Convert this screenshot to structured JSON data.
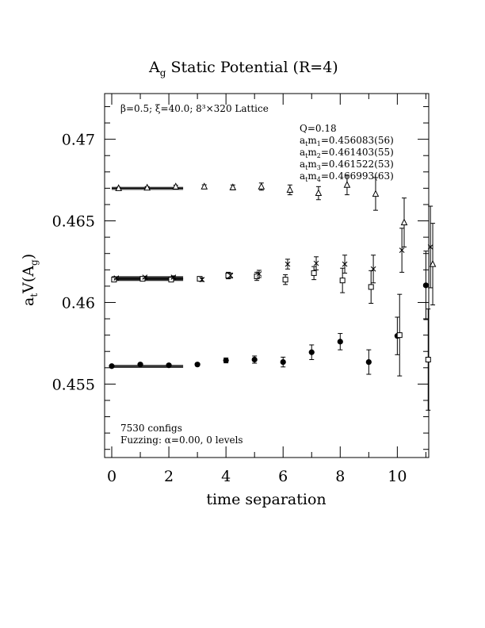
{
  "chart_data": {
    "type": "scatter",
    "title": "A",
    "title_sub": "g",
    "title_rest": " Static Potential (R=4)",
    "ylabel_main": "a",
    "ylabel_sub": "t",
    "ylabel_rest": "V(A",
    "ylabel_sub2": "g",
    "ylabel_end": ")",
    "xlabel": "time separation",
    "xlim": [
      -0.25,
      11.1
    ],
    "ylim": [
      0.4505,
      0.4728
    ],
    "xticks": [
      0,
      2,
      4,
      6,
      8,
      10
    ],
    "xtick_labels": [
      "0",
      "2",
      "4",
      "6",
      "8",
      "10"
    ],
    "yticks": [
      0.455,
      0.46,
      0.465,
      0.47
    ],
    "ytick_labels": [
      "0.455",
      "0.46",
      "0.465",
      "0.47"
    ],
    "grid": false,
    "annotations": {
      "params": "β=0.5; ξ=40.0; 8³×320 Lattice",
      "q": "Q=0.18",
      "m1": "a",
      "masses": [
        {
          "prefix": "a",
          "sub1": "t",
          "mid": "m",
          "sub2": "1",
          "value": "=0.456083(56)"
        },
        {
          "prefix": "a",
          "sub1": "t",
          "mid": "m",
          "sub2": "2",
          "value": "=0.461403(55)"
        },
        {
          "prefix": "a",
          "sub1": "t",
          "mid": "m",
          "sub2": "3",
          "value": "=0.461522(53)"
        },
        {
          "prefix": "a",
          "sub1": "t",
          "mid": "m",
          "sub2": "4",
          "value": "=0.466993(63)"
        }
      ],
      "configs": "7530 configs",
      "fuzzing": "Fuzzing: α=0.00, 0 levels"
    },
    "fit_lines": [
      {
        "y": 0.456083,
        "err": 5.6e-05,
        "x_from": 0,
        "x_to": 2.5
      },
      {
        "y": 0.461403,
        "err": 5.5e-05,
        "x_from": 0,
        "x_to": 2.5
      },
      {
        "y": 0.461522,
        "err": 5.3e-05,
        "x_from": 0,
        "x_to": 2.5
      },
      {
        "y": 0.466993,
        "err": 6.3e-05,
        "x_from": 0,
        "x_to": 2.5
      }
    ],
    "series": [
      {
        "marker": "filled-circle",
        "x": [
          0,
          1,
          2,
          3,
          4,
          5,
          6,
          7,
          8,
          9,
          10,
          11
        ],
        "y": [
          0.4561,
          0.4562,
          0.45615,
          0.4562,
          0.45645,
          0.4565,
          0.45635,
          0.45695,
          0.4576,
          0.45635,
          0.45795,
          0.46105
        ],
        "err": [
          5e-05,
          6e-05,
          7e-05,
          8e-05,
          0.00015,
          0.00022,
          0.0003,
          0.00045,
          0.0005,
          0.00075,
          0.00115,
          0.0021
        ]
      },
      {
        "marker": "square",
        "x": [
          0,
          1,
          2,
          3,
          4,
          5,
          6,
          7,
          8,
          9,
          10,
          11
        ],
        "y": [
          0.4614,
          0.46145,
          0.4614,
          0.46145,
          0.46165,
          0.4616,
          0.4614,
          0.4618,
          0.46135,
          0.46095,
          0.458,
          0.4565
        ],
        "err": [
          5e-05,
          6e-05,
          8e-05,
          0.0001,
          0.0002,
          0.00025,
          0.0003,
          0.0004,
          0.00075,
          0.001,
          0.0025,
          0.0031
        ]
      },
      {
        "marker": "cross",
        "x": [
          0,
          1,
          2,
          3,
          4,
          5,
          6,
          7,
          8,
          9,
          10,
          11
        ],
        "y": [
          0.4615,
          0.46155,
          0.46155,
          0.4614,
          0.46165,
          0.46175,
          0.46235,
          0.4624,
          0.46235,
          0.46205,
          0.4632,
          0.4634
        ],
        "err": [
          5e-05,
          6e-05,
          8e-05,
          0.00011,
          0.00015,
          0.00022,
          0.0003,
          0.0004,
          0.00055,
          0.00085,
          0.00135,
          0.0025
        ]
      },
      {
        "marker": "triangle",
        "x": [
          0,
          1,
          2,
          3,
          4,
          5,
          6,
          7,
          8,
          9,
          10,
          11
        ],
        "y": [
          0.467,
          0.46703,
          0.4671,
          0.4671,
          0.46705,
          0.4671,
          0.4669,
          0.4667,
          0.4672,
          0.46665,
          0.4649,
          0.46235
        ],
        "err": [
          6e-05,
          7e-05,
          8e-05,
          0.00011,
          0.00015,
          0.00022,
          0.0003,
          0.0004,
          0.0006,
          0.001,
          0.0015,
          0.0025
        ]
      }
    ]
  }
}
